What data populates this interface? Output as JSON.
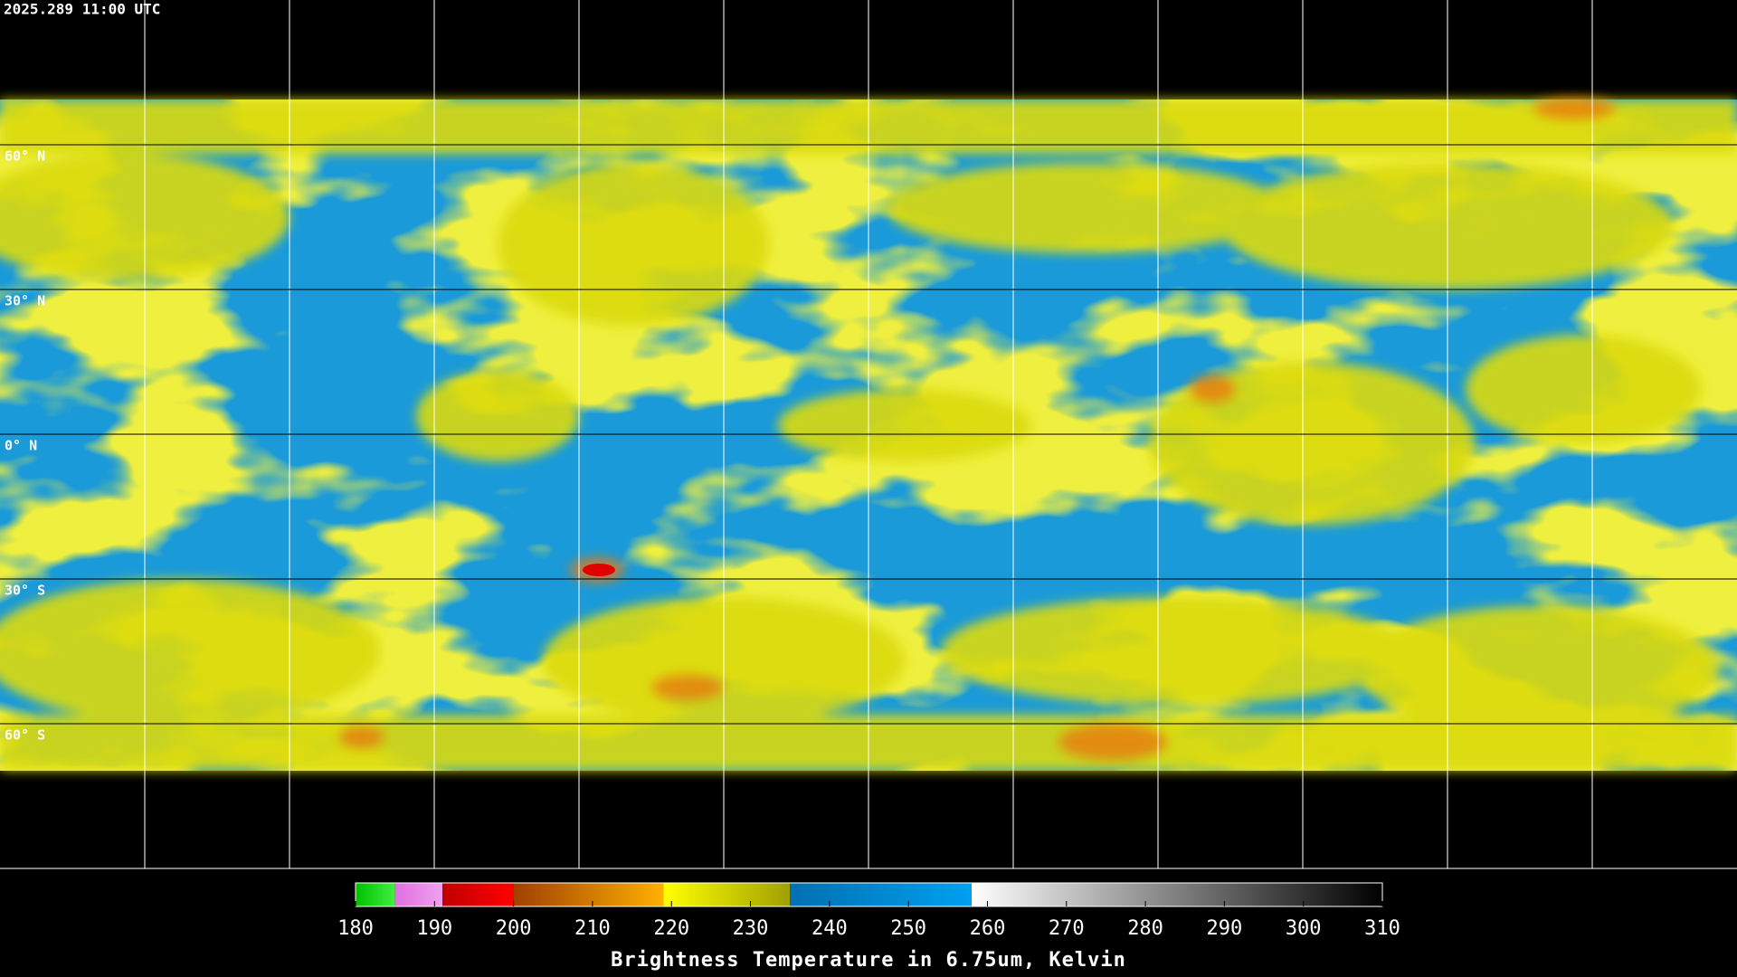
{
  "header": {
    "title": "2025.289 11:00 UTC"
  },
  "map": {
    "lat_grid": [
      {
        "value": 60,
        "label": "60° N"
      },
      {
        "value": 30,
        "label": "30° N"
      },
      {
        "value": 0,
        "label": "0° N"
      },
      {
        "value": -30,
        "label": "30° S"
      },
      {
        "value": -60,
        "label": "60° S"
      }
    ]
  },
  "colorbar": {
    "label": "Brightness Temperature in 6.75um, Kelvin",
    "range": [
      180,
      310
    ],
    "ticks": [
      180,
      190,
      200,
      210,
      220,
      230,
      240,
      250,
      260,
      270,
      280,
      290,
      300,
      310
    ],
    "segments": [
      {
        "from": 180,
        "to": 185,
        "colors": [
          "#00c000",
          "#40f040"
        ]
      },
      {
        "from": 185,
        "to": 191,
        "colors": [
          "#e070e0",
          "#f0a0f0"
        ]
      },
      {
        "from": 191,
        "to": 200,
        "colors": [
          "#c00000",
          "#ff0000"
        ]
      },
      {
        "from": 200,
        "to": 219,
        "colors": [
          "#a04000",
          "#ffb000"
        ]
      },
      {
        "from": 219,
        "to": 235,
        "colors": [
          "#ffff00",
          "#a0a000"
        ]
      },
      {
        "from": 235,
        "to": 258,
        "colors": [
          "#0070b0",
          "#00a0f0"
        ]
      },
      {
        "from": 258,
        "to": 310,
        "colors": [
          "#ffffff",
          "#000000"
        ]
      }
    ]
  }
}
